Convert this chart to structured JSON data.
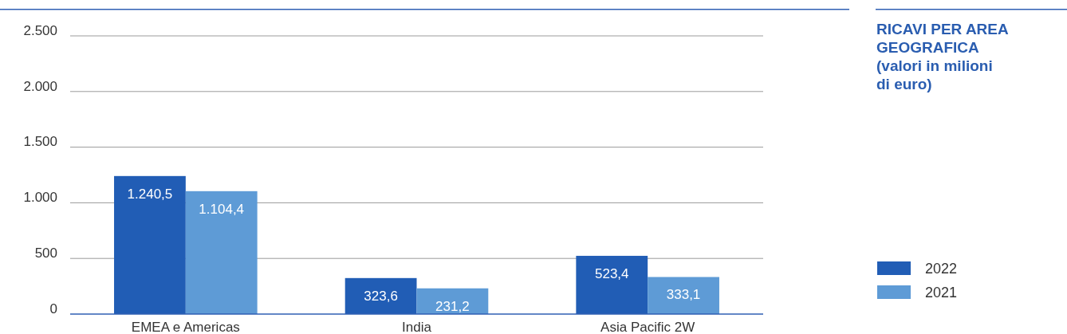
{
  "chart_data": {
    "type": "bar",
    "title": "RICAVI PER AREA GEOGRAFICA (valori in milioni di euro)",
    "categories": [
      "EMEA e Americas",
      "India",
      "Asia Pacific 2W"
    ],
    "series": [
      {
        "name": "2022",
        "color": "#215db5",
        "values": [
          1240.5,
          323.6,
          523.4
        ],
        "value_labels": [
          "1.240,5",
          "323,6",
          "523,4"
        ]
      },
      {
        "name": "2021",
        "color": "#5e9bd6",
        "values": [
          1104.4,
          231.2,
          333.1
        ],
        "value_labels": [
          "1.104,4",
          "231,2",
          "333,1"
        ]
      }
    ],
    "ylim": [
      0,
      2500
    ],
    "yticks": [
      0,
      {
        "value": 500,
        "label": "500"
      },
      {
        "value": 1000,
        "label": "1.000"
      },
      {
        "value": 1500,
        "label": "1.500"
      },
      {
        "value": 2000,
        "label": "2.000"
      },
      {
        "value": 2500,
        "label": "2.500"
      }
    ],
    "grid": "y",
    "legend": "bottom right"
  }
}
